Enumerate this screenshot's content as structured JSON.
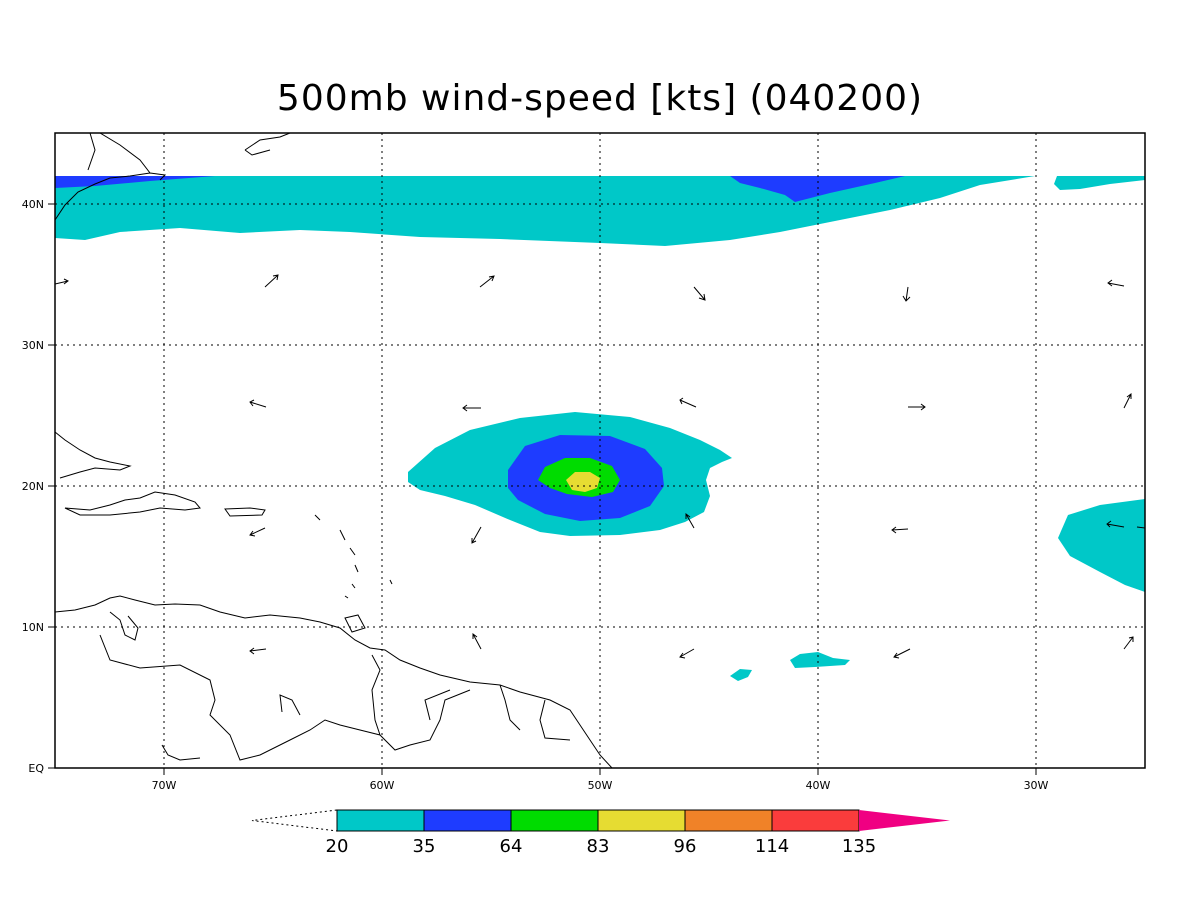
{
  "title": "500mb wind-speed [kts] (040200)",
  "map": {
    "lon_range": [
      -75,
      -25
    ],
    "lat_range": [
      0,
      45
    ],
    "x_tick_labels": [
      "70W",
      "60W",
      "50W",
      "40W",
      "30W"
    ],
    "y_tick_labels": [
      "EQ",
      "10N",
      "20N",
      "30N",
      "40N"
    ],
    "grid": "dotted"
  },
  "colorbar": {
    "levels": [
      "20",
      "35",
      "64",
      "83",
      "96",
      "114",
      "135"
    ],
    "colors": [
      "#00c8c8",
      "#1e3cff",
      "#00dc00",
      "#e6dc32",
      "#f08228",
      "#fa3c3c",
      "#f00082"
    ]
  }
}
